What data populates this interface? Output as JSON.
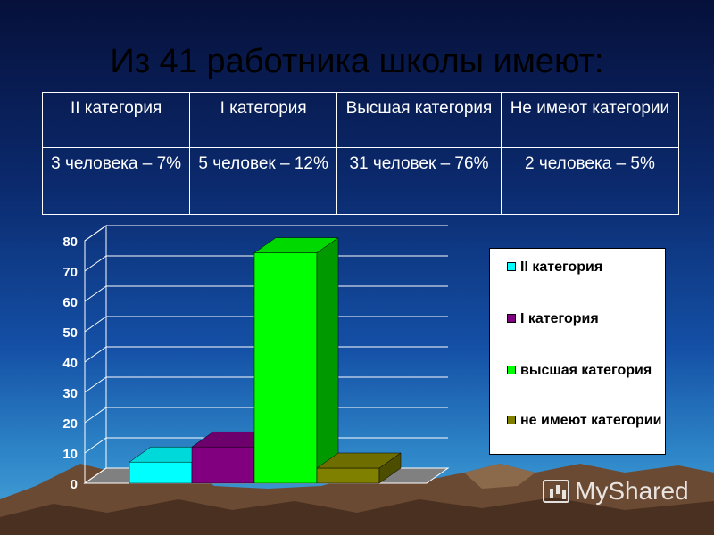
{
  "title": "Из 41 работника школы имеют:",
  "table": {
    "headers": [
      "II категория",
      "I категория",
      "Высшая категория",
      "Не имеют категории"
    ],
    "values": [
      "3 человека – 7%",
      "5 человек – 12%",
      "31 человек – 76%",
      "2 человека – 5%"
    ]
  },
  "chart_data": {
    "type": "bar",
    "categories": [
      "II категория",
      "I категория",
      "высшая категория",
      "не имеют категории"
    ],
    "values": [
      7,
      12,
      76,
      5
    ],
    "colors": [
      "#00ffff",
      "#800080",
      "#00ff00",
      "#808000"
    ],
    "y_ticks": [
      0,
      10,
      20,
      30,
      40,
      50,
      60,
      70,
      80
    ],
    "ylim": [
      0,
      80
    ],
    "grid": true,
    "legend_position": "right",
    "style": "3d"
  },
  "watermark": "MyShared"
}
